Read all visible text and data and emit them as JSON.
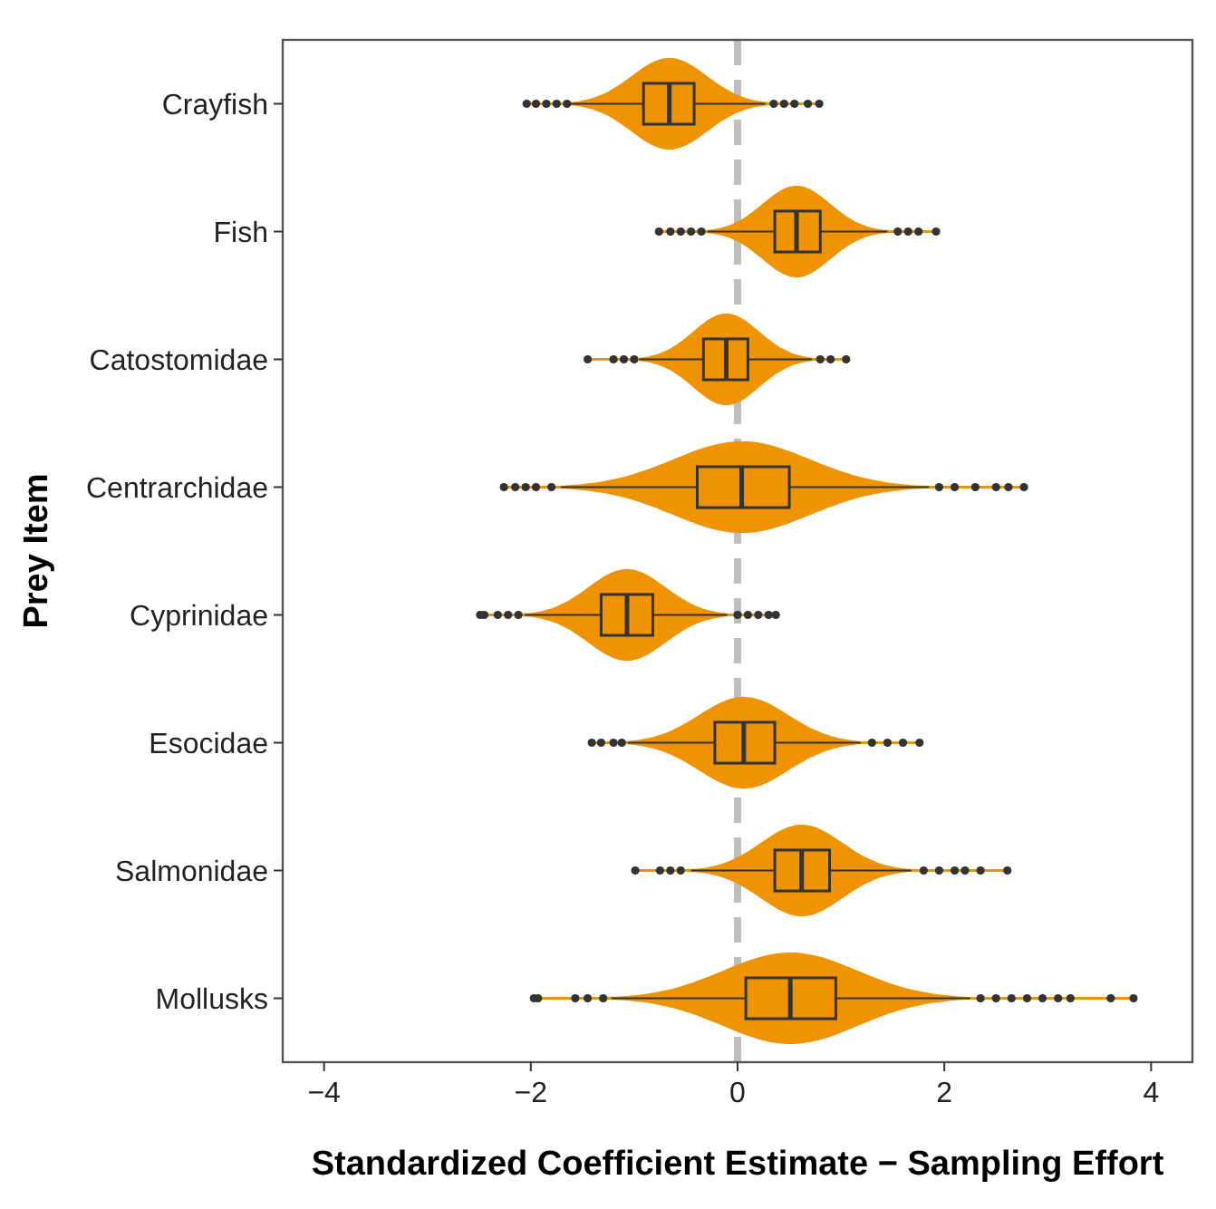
{
  "chart_data": {
    "type": "box",
    "orientation": "horizontal",
    "xlabel": "Standardized Coefficient Estimate − Sampling Effort",
    "ylabel": "Prey Item",
    "categories": [
      "Crayfish",
      "Fish",
      "Catostomidae",
      "Centrarchidae",
      "Cyprinidae",
      "Esocidae",
      "Salmonidae",
      "Mollusks"
    ],
    "color": "#f09300",
    "xlim": [
      -4.4,
      4.4
    ],
    "xticks": [
      -4,
      -2,
      0,
      2,
      4
    ],
    "grid": false,
    "ref_lines": [
      {
        "axis": "x",
        "value": 0,
        "color": "#bdbdbd",
        "line_style": "dashed"
      }
    ],
    "boxes": [
      {
        "low": -1.61,
        "q1": -0.91,
        "median": -0.66,
        "q3": -0.42,
        "high": 0.27,
        "outliers": [
          -2.04,
          -1.95,
          -1.85,
          -1.75,
          -1.65,
          0.35,
          0.45,
          0.55,
          0.68,
          0.79
        ]
      },
      {
        "low": -0.29,
        "q1": 0.36,
        "median": 0.57,
        "q3": 0.8,
        "high": 1.45,
        "outliers": [
          -0.76,
          -0.65,
          -0.55,
          -0.45,
          -0.35,
          1.55,
          1.65,
          1.75,
          1.92
        ]
      },
      {
        "low": -0.95,
        "q1": -0.33,
        "median": -0.11,
        "q3": 0.1,
        "high": 0.72,
        "outliers": [
          -1.45,
          -1.2,
          -1.1,
          -1.0,
          0.8,
          0.9,
          1.05
        ]
      },
      {
        "low": -1.71,
        "q1": -0.39,
        "median": 0.04,
        "q3": 0.5,
        "high": 1.85,
        "outliers": [
          -2.26,
          -2.15,
          -2.05,
          -1.95,
          -1.8,
          1.95,
          2.1,
          2.3,
          2.5,
          2.62,
          2.77
        ]
      },
      {
        "low": -2.06,
        "q1": -1.32,
        "median": -1.07,
        "q3": -0.82,
        "high": -0.1,
        "outliers": [
          -2.49,
          -2.45,
          -2.32,
          -2.22,
          -2.12,
          0.0,
          0.1,
          0.2,
          0.3,
          0.37
        ]
      },
      {
        "low": -1.06,
        "q1": -0.22,
        "median": 0.06,
        "q3": 0.36,
        "high": 1.19,
        "outliers": [
          -1.41,
          -1.32,
          -1.2,
          -1.12,
          1.3,
          1.45,
          1.6,
          1.76
        ]
      },
      {
        "low": -0.45,
        "q1": 0.36,
        "median": 0.62,
        "q3": 0.89,
        "high": 1.68,
        "outliers": [
          -0.99,
          -0.75,
          -0.65,
          -0.55,
          1.8,
          1.95,
          2.1,
          2.2,
          2.35,
          2.61
        ]
      },
      {
        "low": -1.22,
        "q1": 0.08,
        "median": 0.51,
        "q3": 0.95,
        "high": 2.25,
        "outliers": [
          -1.97,
          -1.93,
          -1.57,
          -1.45,
          -1.3,
          2.35,
          2.5,
          2.65,
          2.8,
          2.95,
          3.1,
          3.22,
          3.61,
          3.83
        ]
      }
    ]
  }
}
